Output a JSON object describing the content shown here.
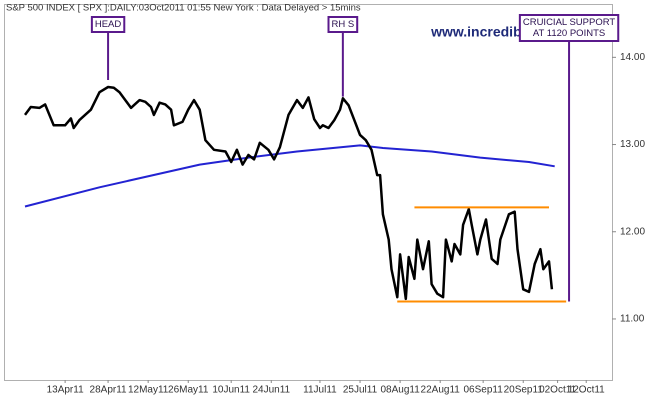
{
  "chart_data": {
    "type": "line",
    "title": "S&P 500 INDEX [ SPX ]:DAILY:03Oct2011 01:55 New York  : Data Delayed > 15mins",
    "watermark": "www.incrediblecharts.com",
    "xlim": [
      "2011-03-23",
      "2011-10-21"
    ],
    "xticks": [
      {
        "value": "2011-04-13",
        "label": "13Apr11"
      },
      {
        "value": "2011-04-28",
        "label": "28Apr11"
      },
      {
        "value": "2011-05-12",
        "label": "12May11"
      },
      {
        "value": "2011-05-26",
        "label": "26May11"
      },
      {
        "value": "2011-06-10",
        "label": "10Jun11"
      },
      {
        "value": "2011-06-24",
        "label": "24Jun11"
      },
      {
        "value": "2011-07-11",
        "label": "11Jul11"
      },
      {
        "value": "2011-07-25",
        "label": "25Jul11"
      },
      {
        "value": "2011-08-08",
        "label": "08Aug11"
      },
      {
        "value": "2011-08-22",
        "label": "22Aug11"
      },
      {
        "value": "2011-09-06",
        "label": "06Sep11"
      },
      {
        "value": "2011-09-20",
        "label": "20Sep11"
      },
      {
        "value": "2011-10-02",
        "label": "02Oct11"
      },
      {
        "value": "2011-10-12",
        "label": "12Oct11"
      }
    ],
    "ylim": [
      10.3,
      14.6
    ],
    "yticks": [
      {
        "value": 11,
        "label": "11.00"
      },
      {
        "value": 12,
        "label": "12.00"
      },
      {
        "value": 13,
        "label": "13.00"
      },
      {
        "value": 14,
        "label": "14.00"
      }
    ],
    "grid": false,
    "series": [
      {
        "color": "#000000",
        "x": [
          "2011-03-30",
          "2011-04-01",
          "2011-04-04",
          "2011-04-06",
          "2011-04-09",
          "2011-04-13",
          "2011-04-15",
          "2011-04-16",
          "2011-04-18",
          "2011-04-22",
          "2011-04-25",
          "2011-04-28",
          "2011-04-30",
          "2011-05-02",
          "2011-05-04",
          "2011-05-06",
          "2011-05-07",
          "2011-05-09",
          "2011-05-11",
          "2011-05-13",
          "2011-05-14",
          "2011-05-16",
          "2011-05-18",
          "2011-05-20",
          "2011-05-21",
          "2011-05-24",
          "2011-05-26",
          "2011-05-28",
          "2011-05-30",
          "2011-06-01",
          "2011-06-04",
          "2011-06-08",
          "2011-06-10",
          "2011-06-12",
          "2011-06-14",
          "2011-06-16",
          "2011-06-18",
          "2011-06-20",
          "2011-06-23",
          "2011-06-25",
          "2011-06-27",
          "2011-06-30",
          "2011-07-03",
          "2011-07-05",
          "2011-07-07",
          "2011-07-09",
          "2011-07-11",
          "2011-07-12",
          "2011-07-14",
          "2011-07-16",
          "2011-07-18",
          "2011-07-19",
          "2011-07-21",
          "2011-07-23",
          "2011-07-25",
          "2011-07-27",
          "2011-07-29",
          "2011-07-31",
          "2011-08-01",
          "2011-08-02",
          "2011-08-04",
          "2011-08-05",
          "2011-08-07",
          "2011-08-08",
          "2011-08-10",
          "2011-08-11",
          "2011-08-13",
          "2011-08-14",
          "2011-08-16",
          "2011-08-18",
          "2011-08-19",
          "2011-08-21",
          "2011-08-23",
          "2011-08-24",
          "2011-08-26",
          "2011-08-27",
          "2011-08-29",
          "2011-08-30",
          "2011-09-01",
          "2011-09-02",
          "2011-09-04",
          "2011-09-05",
          "2011-09-07",
          "2011-09-09",
          "2011-09-11",
          "2011-09-12",
          "2011-09-15",
          "2011-09-17",
          "2011-09-18",
          "2011-09-20",
          "2011-09-22",
          "2011-09-24",
          "2011-09-26",
          "2011-09-27",
          "2011-09-29",
          "2011-09-30"
        ],
        "values": [
          13.34,
          13.43,
          13.42,
          13.46,
          13.22,
          13.22,
          13.3,
          13.19,
          13.28,
          13.4,
          13.6,
          13.66,
          13.65,
          13.6,
          13.51,
          13.42,
          13.45,
          13.51,
          13.49,
          13.43,
          13.34,
          13.48,
          13.46,
          13.4,
          13.22,
          13.26,
          13.4,
          13.51,
          13.4,
          13.05,
          12.94,
          12.92,
          12.8,
          12.94,
          12.77,
          12.88,
          12.83,
          13.02,
          12.94,
          12.83,
          12.97,
          13.34,
          13.51,
          13.42,
          13.54,
          13.29,
          13.19,
          13.22,
          13.19,
          13.28,
          13.4,
          13.53,
          13.45,
          13.28,
          13.11,
          13.05,
          12.94,
          12.65,
          12.65,
          12.2,
          11.91,
          11.57,
          11.25,
          11.74,
          11.23,
          11.71,
          11.46,
          11.91,
          11.57,
          11.89,
          11.4,
          11.29,
          11.25,
          11.91,
          11.66,
          11.86,
          11.74,
          12.08,
          12.26,
          12.08,
          11.74,
          11.91,
          12.14,
          11.69,
          11.63,
          11.91,
          12.2,
          12.23,
          11.8,
          11.34,
          11.31,
          11.63,
          11.8,
          11.57,
          11.66,
          11.34
        ]
      },
      {
        "color": "#2323d2",
        "x": [
          "2011-03-30",
          "2011-04-25",
          "2011-05-30",
          "2011-06-16",
          "2011-07-03",
          "2011-07-25",
          "2011-08-02",
          "2011-08-19",
          "2011-09-05",
          "2011-09-22",
          "2011-10-01"
        ],
        "values": [
          12.29,
          12.51,
          12.77,
          12.85,
          12.92,
          12.99,
          12.96,
          12.92,
          12.85,
          12.8,
          12.75
        ]
      }
    ],
    "levels": [
      {
        "color": "#ff8c00",
        "x": [
          "2011-08-13",
          "2011-09-29"
        ],
        "value": 12.28
      },
      {
        "color": "#ff8c00",
        "x": [
          "2011-08-07",
          "2011-10-05"
        ],
        "value": 11.2
      }
    ],
    "annotations": [
      {
        "lines": [
          "HEAD"
        ],
        "x": "2011-04-28",
        "value": 13.74
      },
      {
        "lines": [
          "RH S"
        ],
        "x": "2011-07-19",
        "value": 13.55
      },
      {
        "lines": [
          "CRUICIAL SUPPORT",
          "AT 1120 POINTS"
        ],
        "x": "2011-10-06",
        "value": 11.2
      }
    ]
  }
}
